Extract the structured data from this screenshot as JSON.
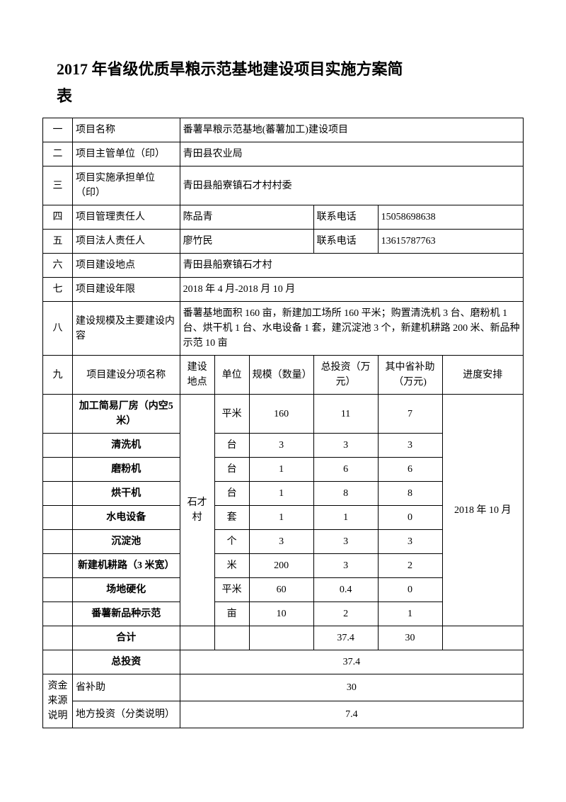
{
  "title": "2017 年省级优质旱粮示范基地建设项目实施方案简",
  "subtitle": "表",
  "rows": {
    "r1": {
      "num": "一",
      "label": "项目名称",
      "value": "番薯旱粮示范基地(蕃薯加工)建设项目"
    },
    "r2": {
      "num": "二",
      "label": "项目主管单位（印）",
      "value": "青田县农业局"
    },
    "r3": {
      "num": "三",
      "label": "项目实施承担单位（印）",
      "value": "青田县船寮镇石才村村委"
    },
    "r4": {
      "num": "四",
      "label": "项目管理责任人",
      "name": "陈品青",
      "phone_label": "联系电话",
      "phone": "15058698638"
    },
    "r5": {
      "num": "五",
      "label": "项目法人责任人",
      "name": "廖竹民",
      "phone_label": "联系电话",
      "phone": "13615787763"
    },
    "r6": {
      "num": "六",
      "label": "项目建设地点",
      "value": "青田县船寮镇石才村"
    },
    "r7": {
      "num": "七",
      "label": "项目建设年限",
      "value": "2018 年 4 月-2018 月 10 月"
    },
    "r8": {
      "num": "八",
      "label": "建设规模及主要建设内容",
      "value": "番薯基地面积 160 亩，新建加工场所 160 平米；购置清洗机 3 台、磨粉机 1 台、烘干机 1 台、水电设备 1 套，建沉淀池 3 个，新建机耕路 200 米、新品种示范 10 亩"
    },
    "r9": {
      "num": "九",
      "label": "项目建设分项名称"
    }
  },
  "headers": {
    "location": "建设地点",
    "unit": "单位",
    "scale": "规模（数量）",
    "invest": "总投资（万元）",
    "subsidy": "其中省补助（万元)",
    "schedule": "进度安排"
  },
  "location_value": "石才村",
  "schedule_value": "2018 年 10 月",
  "items": [
    {
      "name": "加工简易厂房（内空5 米）",
      "unit": "平米",
      "scale": "160",
      "invest": "11",
      "subsidy": "7"
    },
    {
      "name": "清洗机",
      "unit": "台",
      "scale": "3",
      "invest": "3",
      "subsidy": "3"
    },
    {
      "name": "磨粉机",
      "unit": "台",
      "scale": "1",
      "invest": "6",
      "subsidy": "6"
    },
    {
      "name": "烘干机",
      "unit": "台",
      "scale": "1",
      "invest": "8",
      "subsidy": "8"
    },
    {
      "name": "水电设备",
      "unit": "套",
      "scale": "1",
      "invest": "1",
      "subsidy": "0"
    },
    {
      "name": "沉淀池",
      "unit": "个",
      "scale": "3",
      "invest": "3",
      "subsidy": "3"
    },
    {
      "name": "新建机耕路（3 米宽）",
      "unit": "米",
      "scale": "200",
      "invest": "3",
      "subsidy": "2"
    },
    {
      "name": "场地硬化",
      "unit": "平米",
      "scale": "60",
      "invest": "0.4",
      "subsidy": "0"
    },
    {
      "name": "番薯新品种示范",
      "unit": "亩",
      "scale": "10",
      "invest": "2",
      "subsidy": "1"
    }
  ],
  "sum": {
    "label": "合计",
    "invest": "37.4",
    "subsidy": "30"
  },
  "totals": {
    "total_label": "总投资",
    "total_value": "37.4",
    "funding_label": "资金来源说明",
    "subsidy_label": "省补助",
    "subsidy_value": "30",
    "local_label": "地方投资（分类说明）",
    "local_value": "7.4"
  }
}
